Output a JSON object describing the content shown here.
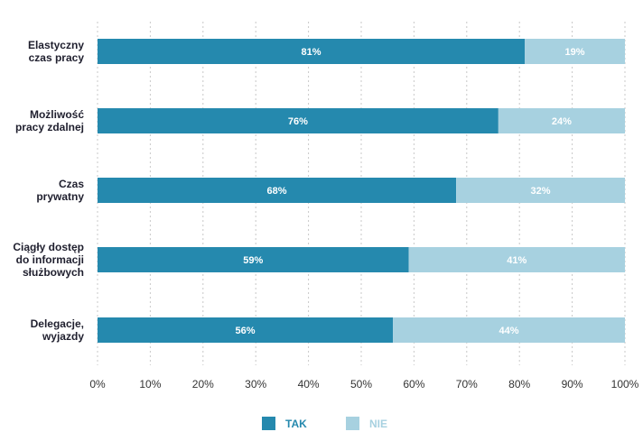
{
  "chart_data": {
    "type": "bar",
    "orientation": "horizontal",
    "stacked": true,
    "title": "",
    "xlabel": "",
    "ylabel": "",
    "xlim": [
      0,
      100
    ],
    "x_ticks": [
      "0%",
      "10%",
      "20%",
      "30%",
      "40%",
      "50%",
      "60%",
      "70%",
      "80%",
      "90%",
      "100%"
    ],
    "grid": "vertical-dotted",
    "legend_position": "bottom-center",
    "categories": [
      [
        "Elastyczny",
        "czas pracy"
      ],
      [
        "Możliwość",
        "pracy zdalnej"
      ],
      [
        "Czas",
        "prywatny"
      ],
      [
        "Ciągły dostęp",
        "do informacji",
        "służbowych"
      ],
      [
        "Delegacje,",
        "wyjazdy"
      ]
    ],
    "series": [
      {
        "name": "TAK",
        "color": "#2589ae",
        "label_color": "#2589ae",
        "values": [
          81,
          76,
          68,
          59,
          56
        ],
        "labels": [
          "81%",
          "76%",
          "68%",
          "59%",
          "56%"
        ]
      },
      {
        "name": "NIE",
        "color": "#a7d1e0",
        "label_color": "#a7d1e0",
        "values": [
          19,
          24,
          32,
          41,
          44
        ],
        "labels": [
          "19%",
          "24%",
          "32%",
          "41%",
          "44%"
        ]
      }
    ]
  }
}
